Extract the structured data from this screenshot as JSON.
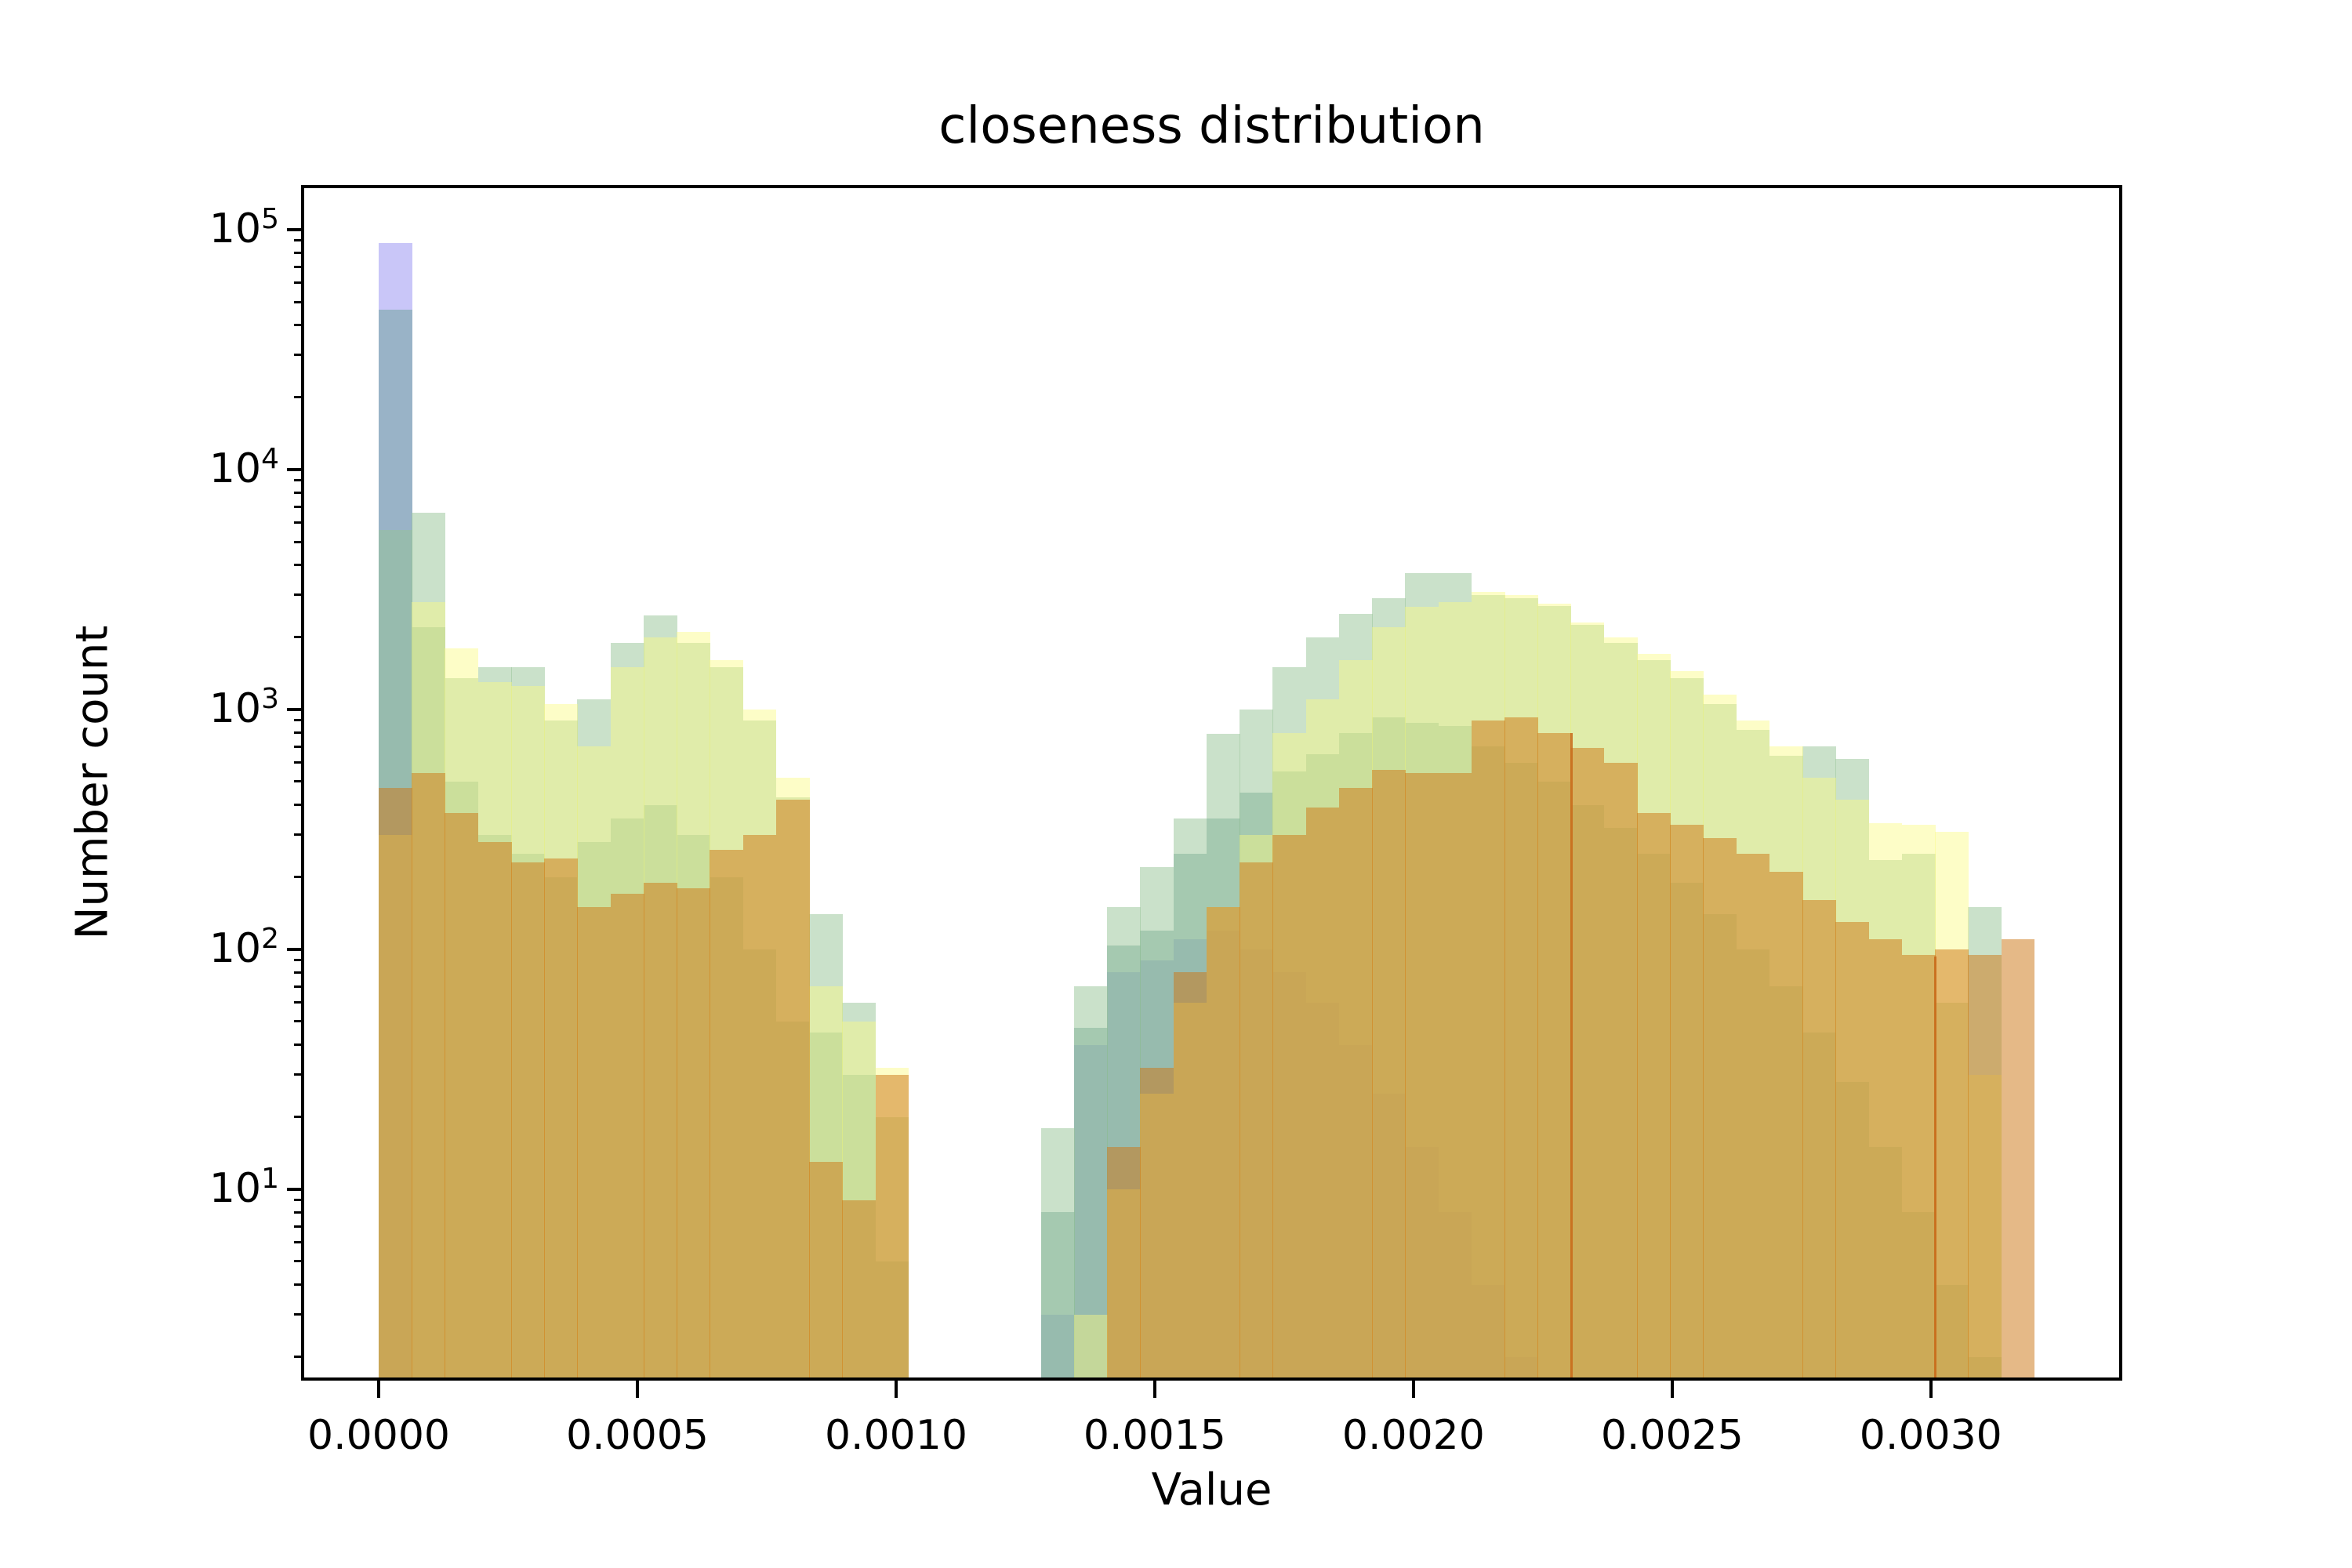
{
  "title": "closeness distribution",
  "xlabel": "Value",
  "ylabel": "Number count",
  "chart_data": {
    "type": "histogram",
    "subtype": "overlapping-translucent-histograms",
    "title": "closeness distribution",
    "xlabel": "Value",
    "ylabel": "Number count",
    "y_scale": "log",
    "grid": false,
    "legend": "none",
    "xlim": [
      -0.000144,
      0.003364
    ],
    "ylim": [
      1.64,
      149000
    ],
    "x_bin_start": 0.0,
    "x_bin_width": 6.4e-05,
    "n_bins": 50,
    "x_ticks": [
      {
        "v": 0.0,
        "label": "0.0000"
      },
      {
        "v": 0.0005,
        "label": "0.0005"
      },
      {
        "v": 0.001,
        "label": "0.0010"
      },
      {
        "v": 0.0015,
        "label": "0.0015"
      },
      {
        "v": 0.002,
        "label": "0.0020"
      },
      {
        "v": 0.0025,
        "label": "0.0025"
      },
      {
        "v": 0.003,
        "label": "0.0030"
      }
    ],
    "y_ticks_exp": [
      1,
      2,
      3,
      4,
      5
    ],
    "y_minor_decades": [
      1,
      10,
      100,
      1000,
      10000
    ],
    "series": [
      {
        "name": "series-purple",
        "color": "rgba(140,134,240,0.47)",
        "values": [
          88000,
          0,
          0,
          0,
          0,
          0,
          0,
          0,
          0,
          0,
          0,
          0,
          0,
          0,
          0,
          0,
          0,
          0,
          0,
          0,
          3,
          40,
          80,
          90,
          110,
          120,
          100,
          80,
          60,
          40,
          25,
          15,
          8,
          4,
          2,
          0,
          0,
          0,
          0,
          0,
          0,
          0,
          0,
          0,
          0,
          0,
          0,
          0,
          0,
          0
        ]
      },
      {
        "name": "series-blue",
        "color": "rgba(105,160,150,0.50)",
        "values": [
          46500,
          2200,
          500,
          300,
          250,
          200,
          280,
          350,
          400,
          300,
          200,
          100,
          50,
          45,
          30,
          5,
          0,
          0,
          0,
          0,
          8,
          47,
          104,
          120,
          250,
          350,
          450,
          550,
          650,
          800,
          930,
          880,
          850,
          700,
          600,
          500,
          400,
          320,
          250,
          190,
          140,
          100,
          70,
          45,
          28,
          15,
          8,
          4,
          2,
          0
        ]
      },
      {
        "name": "series-green",
        "color": "rgba(150,195,150,0.50)",
        "values": [
          5600,
          6600,
          1350,
          1500,
          1500,
          900,
          1100,
          1900,
          2470,
          1900,
          1500,
          900,
          430,
          140,
          60,
          20,
          0,
          0,
          0,
          0,
          18,
          70,
          150,
          220,
          350,
          790,
          1000,
          1500,
          2000,
          2500,
          2900,
          3700,
          3700,
          3000,
          2900,
          2700,
          2250,
          1900,
          1600,
          1350,
          1050,
          820,
          640,
          700,
          620,
          235,
          250,
          60,
          150,
          0
        ]
      },
      {
        "name": "series-yellow",
        "color": "rgba(250,250,130,0.45)",
        "values": [
          300,
          2800,
          1800,
          1300,
          1250,
          1050,
          700,
          1500,
          2000,
          2100,
          1600,
          1000,
          520,
          70,
          50,
          32,
          0,
          0,
          0,
          0,
          0,
          3,
          10,
          25,
          60,
          150,
          300,
          800,
          1100,
          1600,
          2200,
          2670,
          2800,
          3100,
          3000,
          2750,
          2300,
          2000,
          1700,
          1450,
          1150,
          900,
          700,
          520,
          420,
          335,
          330,
          310,
          30,
          0
        ]
      },
      {
        "name": "series-orange",
        "color": "rgba(205,120,25,0.52)",
        "values": [
          470,
          545,
          370,
          280,
          230,
          240,
          150,
          170,
          190,
          180,
          260,
          300,
          420,
          13,
          9,
          30,
          0,
          0,
          0,
          0,
          0,
          0,
          15,
          32,
          80,
          150,
          230,
          300,
          390,
          470,
          560,
          545,
          545,
          900,
          930,
          800,
          690,
          600,
          370,
          330,
          290,
          250,
          210,
          160,
          130,
          110,
          95,
          100,
          95,
          110
        ]
      }
    ],
    "edge_seam_lines": [
      {
        "x": 0.002305,
        "top_count": 800,
        "color": "rgba(200,105,25,0.85)"
      },
      {
        "x": 0.003008,
        "top_count": 93,
        "color": "rgba(200,105,25,0.85)"
      }
    ]
  }
}
